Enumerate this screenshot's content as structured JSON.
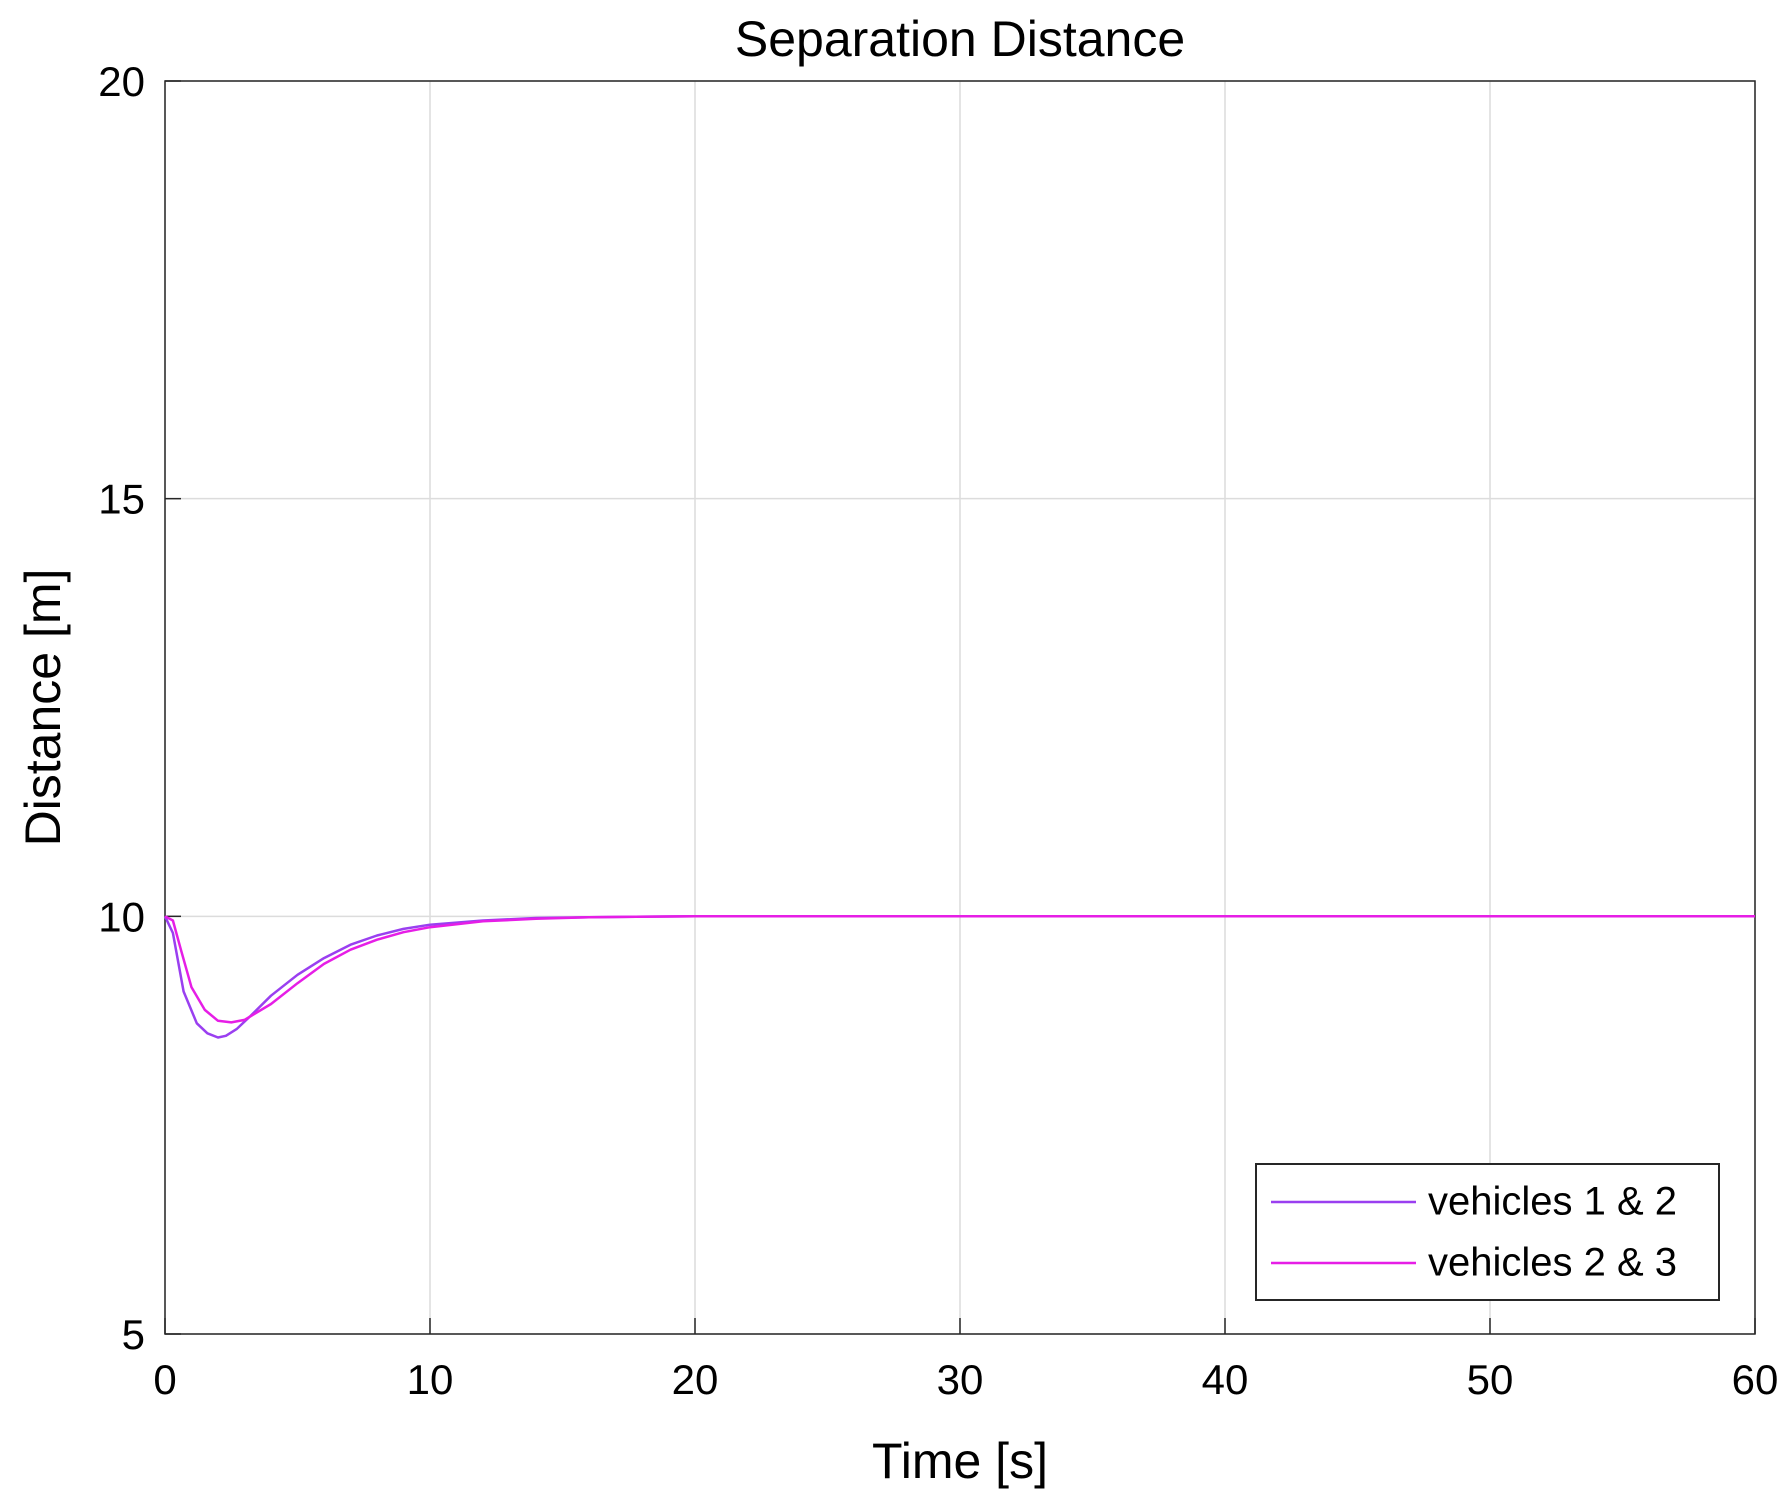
{
  "chart_data": {
    "type": "line",
    "title": "Separation Distance",
    "xlabel": "Time [s]",
    "ylabel": "Distance [m]",
    "xlim": [
      0,
      60
    ],
    "ylim": [
      5,
      20
    ],
    "xticks": [
      0,
      10,
      20,
      30,
      40,
      50,
      60
    ],
    "yticks": [
      5,
      10,
      15,
      20
    ],
    "grid": true,
    "legend_position": "bottom-right",
    "series": [
      {
        "name": "vehicles 1 & 2",
        "color": "#9a3ff0",
        "x": [
          0,
          0.3,
          0.7,
          1.2,
          1.6,
          2.0,
          2.3,
          2.7,
          3.2,
          4,
          5,
          6,
          7,
          8,
          9,
          10,
          12,
          14,
          16,
          20,
          30,
          40,
          50,
          60
        ],
        "y": [
          10.0,
          9.8,
          9.1,
          8.72,
          8.6,
          8.55,
          8.57,
          8.65,
          8.8,
          9.05,
          9.3,
          9.5,
          9.66,
          9.77,
          9.85,
          9.9,
          9.95,
          9.98,
          9.99,
          10.0,
          10.0,
          10.0,
          10.0,
          10.0
        ]
      },
      {
        "name": "vehicles 2 & 3",
        "color": "#e61ee6",
        "x": [
          0,
          0.3,
          0.6,
          1.0,
          1.5,
          2.0,
          2.5,
          3.0,
          4,
          5,
          6,
          7,
          8,
          9,
          10,
          12,
          14,
          16,
          20,
          30,
          40,
          50,
          60
        ],
        "y": [
          10.0,
          9.95,
          9.6,
          9.15,
          8.88,
          8.75,
          8.73,
          8.76,
          8.95,
          9.2,
          9.43,
          9.6,
          9.72,
          9.81,
          9.87,
          9.94,
          9.97,
          9.99,
          10.0,
          10.0,
          10.0,
          10.0,
          10.0
        ]
      }
    ]
  }
}
